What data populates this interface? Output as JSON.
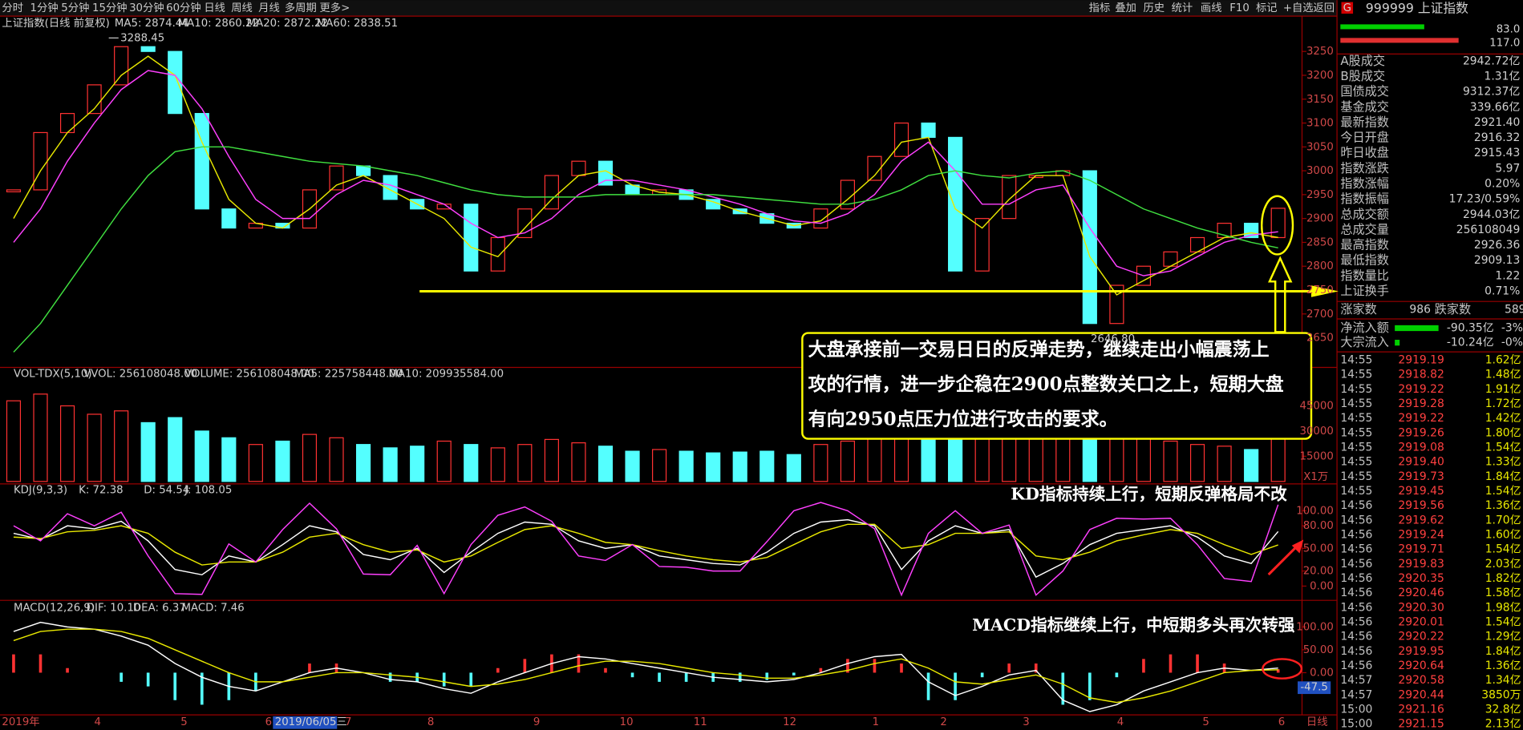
{
  "toolbar": {
    "periods": [
      "分时",
      "1分钟",
      "5分钟",
      "15分钟",
      "30分钟",
      "60分钟",
      "日线",
      "周线",
      "月线",
      "多周期",
      "更多>"
    ],
    "tools": [
      "指标",
      "叠加",
      "历史",
      "统计",
      "画线",
      "F10",
      "标记",
      "+自选",
      "返回"
    ]
  },
  "price": {
    "title": "上证指数(日线 前复权)",
    "ma_labels": [
      {
        "text": "MA5: 2874.44",
        "color": "#ffffff"
      },
      {
        "text": "MA10: 2860.22",
        "color": "#e8e800"
      },
      {
        "text": "MA20: 2872.22",
        "color": "#ff40ff"
      },
      {
        "text": "MA60: 2838.51",
        "color": "#40e040"
      }
    ],
    "high_label": "3288.45",
    "low_label": "2646.80",
    "ylim": [
      2591,
      3323
    ],
    "yticks": [
      2650,
      2700,
      2750,
      2800,
      2850,
      2900,
      2950,
      3000,
      3050,
      3100,
      3150,
      3200,
      3250
    ],
    "close": [
      2960,
      3080,
      3120,
      3180,
      3260,
      3250,
      3120,
      2920,
      2880,
      2890,
      2880,
      2960,
      3010,
      2990,
      2940,
      2920,
      2930,
      2790,
      2860,
      2920,
      2990,
      3020,
      2970,
      2950,
      2960,
      2940,
      2920,
      2910,
      2890,
      2880,
      2920,
      2980,
      3030,
      3100,
      3070,
      2790,
      2900,
      2990,
      2990,
      3000,
      2680,
      2760,
      2800,
      2830,
      2860,
      2890,
      2860,
      2921.4
    ],
    "ma10": [
      2900,
      3000,
      3080,
      3130,
      3200,
      3240,
      3200,
      3060,
      2940,
      2890,
      2880,
      2920,
      2970,
      2990,
      2960,
      2930,
      2900,
      2840,
      2820,
      2880,
      2940,
      2990,
      3000,
      2970,
      2955,
      2950,
      2935,
      2915,
      2900,
      2885,
      2895,
      2940,
      2990,
      3060,
      3070,
      2920,
      2880,
      2940,
      2990,
      2990,
      2820,
      2740,
      2770,
      2800,
      2830,
      2860,
      2870,
      2860.22
    ],
    "ma20": [
      2850,
      2920,
      3020,
      3100,
      3170,
      3210,
      3200,
      3130,
      3030,
      2940,
      2900,
      2900,
      2950,
      2980,
      2970,
      2950,
      2930,
      2890,
      2860,
      2870,
      2900,
      2950,
      2980,
      2980,
      2970,
      2960,
      2945,
      2930,
      2910,
      2895,
      2890,
      2910,
      2950,
      3020,
      3060,
      3000,
      2930,
      2930,
      2960,
      2970,
      2880,
      2800,
      2780,
      2790,
      2820,
      2850,
      2865,
      2872.22
    ],
    "ma60": [
      2620,
      2680,
      2760,
      2840,
      2920,
      2990,
      3040,
      3050,
      3050,
      3040,
      3030,
      3020,
      3015,
      3010,
      3000,
      2990,
      2975,
      2960,
      2950,
      2945,
      2945,
      2945,
      2950,
      2950,
      2950,
      2950,
      2950,
      2945,
      2940,
      2935,
      2930,
      2930,
      2940,
      2960,
      2990,
      3000,
      2990,
      2985,
      2995,
      3000,
      2980,
      2950,
      2920,
      2900,
      2880,
      2865,
      2850,
      2838.51
    ]
  },
  "volume": {
    "labels": [
      {
        "text": "VOL-TDX(5,10)",
        "color": "#d0d0d0"
      },
      {
        "text": "VVOL: 256108048.00",
        "color": "#d0d0d0"
      },
      {
        "text": "VOLUME: 256108048.00",
        "color": "#e8e800"
      },
      {
        "text": "MA5: 225758448.00",
        "color": "#e8e800"
      },
      {
        "text": "MA10: 209935584.00",
        "color": "#ff40ff"
      }
    ],
    "unit": "X1万",
    "ylim": [
      0,
      67000
    ],
    "yticks": [
      15000,
      30000,
      45000
    ],
    "values": [
      48000,
      52000,
      45000,
      40000,
      42000,
      35000,
      38000,
      30000,
      26000,
      22000,
      24000,
      28000,
      26000,
      22000,
      20000,
      21000,
      24000,
      22000,
      20000,
      22000,
      25000,
      23000,
      21000,
      18000,
      19000,
      18000,
      17000,
      17500,
      18000,
      16000,
      22000,
      24000,
      28000,
      34000,
      30000,
      45000,
      38000,
      40000,
      42000,
      36000,
      38000,
      30000,
      26000,
      24000,
      22000,
      21000,
      19000,
      25611
    ]
  },
  "kdj": {
    "labels": [
      {
        "text": "KDJ(9,3,3)",
        "color": "#d0d0d0"
      },
      {
        "text": "K: 72.38",
        "color": "#ffffff"
      },
      {
        "text": "D: 54.54",
        "color": "#e8e800"
      },
      {
        "text": "J: 108.05",
        "color": "#ff40ff"
      }
    ],
    "ylim": [
      -17,
      135
    ],
    "yticks": [
      {
        "value": 0,
        "label": "0.00"
      },
      {
        "value": 20,
        "label": "20.00"
      },
      {
        "value": 50,
        "label": "50.00"
      },
      {
        "value": 80,
        "label": "80.00"
      },
      {
        "value": 100,
        "label": "100.00"
      }
    ],
    "k": [
      70,
      62,
      80,
      76,
      86,
      60,
      22,
      15,
      40,
      32,
      55,
      80,
      72,
      42,
      35,
      50,
      18,
      45,
      70,
      85,
      82,
      60,
      50,
      55,
      40,
      35,
      30,
      28,
      45,
      70,
      85,
      88,
      80,
      22,
      60,
      80,
      70,
      75,
      12,
      30,
      55,
      70,
      75,
      80,
      65,
      40,
      30,
      72.38
    ],
    "d": [
      65,
      63,
      72,
      74,
      80,
      70,
      45,
      28,
      32,
      32,
      45,
      65,
      70,
      55,
      45,
      48,
      32,
      40,
      58,
      75,
      80,
      70,
      58,
      55,
      47,
      40,
      35,
      32,
      38,
      55,
      72,
      82,
      82,
      50,
      55,
      70,
      70,
      72,
      40,
      35,
      45,
      60,
      68,
      75,
      70,
      55,
      42,
      54.54
    ],
    "j": [
      80,
      60,
      96,
      80,
      98,
      40,
      -10,
      -11,
      56,
      32,
      75,
      110,
      76,
      16,
      15,
      54,
      -10,
      55,
      94,
      105,
      86,
      40,
      34,
      55,
      26,
      25,
      20,
      20,
      59,
      100,
      111,
      100,
      76,
      -12,
      70,
      100,
      70,
      81,
      -12,
      20,
      75,
      90,
      89,
      90,
      55,
      10,
      6,
      108.05
    ],
    "annotation": "KD指标持续上行，短期反弹格局不改"
  },
  "macd": {
    "labels": [
      {
        "text": "MACD(12,26,9)",
        "color": "#d0d0d0"
      },
      {
        "text": "DIF: 10.10",
        "color": "#ffffff"
      },
      {
        "text": "DEA: 6.37",
        "color": "#e8e800"
      },
      {
        "text": "MACD: 7.46",
        "color": "#ff40ff"
      }
    ],
    "ylim": [
      -89,
      157
    ],
    "yticks": [
      {
        "value": 0,
        "label": "0.00"
      },
      {
        "value": 50,
        "label": "50.00"
      },
      {
        "value": 100,
        "label": "100.00"
      }
    ],
    "dif": [
      90,
      110,
      100,
      95,
      80,
      60,
      20,
      -10,
      -30,
      -40,
      -20,
      0,
      10,
      0,
      -15,
      -20,
      -35,
      -45,
      -20,
      0,
      20,
      35,
      30,
      20,
      10,
      0,
      -10,
      -15,
      -20,
      -15,
      0,
      20,
      35,
      40,
      -20,
      -50,
      -30,
      -5,
      5,
      -60,
      -85,
      -70,
      -40,
      -20,
      0,
      10,
      5,
      10.1
    ],
    "dea": [
      70,
      90,
      95,
      95,
      90,
      75,
      50,
      25,
      0,
      -20,
      -20,
      -10,
      0,
      0,
      -5,
      -10,
      -20,
      -30,
      -25,
      -15,
      0,
      15,
      25,
      25,
      20,
      10,
      0,
      -5,
      -12,
      -12,
      -5,
      5,
      20,
      30,
      10,
      -20,
      -25,
      -15,
      -5,
      -25,
      -55,
      -65,
      -55,
      -40,
      -20,
      0,
      5,
      6.37
    ],
    "macd": [
      40,
      40,
      10,
      0,
      -20,
      -30,
      -60,
      -70,
      -60,
      -40,
      0,
      20,
      20,
      0,
      -20,
      -20,
      -30,
      -30,
      10,
      30,
      40,
      40,
      10,
      -10,
      -20,
      -20,
      -20,
      -20,
      -16,
      -6,
      10,
      30,
      30,
      20,
      -60,
      -60,
      -10,
      20,
      20,
      -70,
      -60,
      -10,
      30,
      40,
      40,
      20,
      0,
      7.46
    ],
    "cursor_label": "-47.5",
    "annotation": "MACD指标继续上行，中短期多头再次转强"
  },
  "annotation": [
    "大盘承接前一交易日日的反弹走势，继续走出小幅震荡上",
    "攻的行情，进一步企稳在2900点整数关口之上，短期大盘",
    "有向2950点压力位进行攻击的要求。"
  ],
  "xaxis": [
    "2019年",
    "4",
    "5",
    "6",
    "2019/06/05三",
    "7",
    "8",
    "9",
    "10",
    "11",
    "12",
    "1",
    "2",
    "3",
    "4",
    "5",
    "6",
    "日线"
  ],
  "quote": {
    "code": "999999 上证指数",
    "badge": "G",
    "bars": [
      {
        "value": 83,
        "label": "83.0",
        "color": "#00d000"
      },
      {
        "value": 117,
        "label": "117.0",
        "color": "#e03030"
      }
    ],
    "rows": [
      {
        "label": "A股成交",
        "value": "2942.72亿",
        "color": "#e8e800"
      },
      {
        "label": "B股成交",
        "value": "1.31亿",
        "color": "#e8e800"
      },
      {
        "label": "国债成交",
        "value": "9312.37亿",
        "color": "#e8e800"
      },
      {
        "label": "基金成交",
        "value": "339.66亿",
        "color": "#e8e800"
      },
      {
        "label": "最新指数",
        "value": "2921.40",
        "color": "#ff4040"
      },
      {
        "label": "今日开盘",
        "value": "2916.32",
        "color": "#ff4040"
      },
      {
        "label": "昨日收盘",
        "value": "2915.43",
        "color": "#e0e0e0"
      },
      {
        "label": "指数涨跌",
        "value": "5.97",
        "color": "#ff4040"
      },
      {
        "label": "指数涨幅",
        "value": "0.20%",
        "color": "#ff4040"
      },
      {
        "label": "指数振幅",
        "value": "17.23/0.59%",
        "color": "#e0e0e0"
      },
      {
        "label": "总成交额",
        "value": "2944.03亿",
        "color": "#e8e800"
      },
      {
        "label": "总成交量",
        "value": "256108049",
        "color": "#e8e800"
      },
      {
        "label": "最高指数",
        "value": "2926.36",
        "color": "#ff4040"
      },
      {
        "label": "最低指数",
        "value": "2909.13",
        "color": "#ff4040"
      },
      {
        "label": "指数量比",
        "value": "1.22",
        "color": "#e8e800"
      },
      {
        "label": "上证换手",
        "value": "0.71%",
        "color": "#e0e0e0"
      }
    ],
    "breadth": {
      "up_label": "涨家数",
      "up": 986,
      "down_label": "跌家数",
      "down": 589
    },
    "flows": [
      {
        "label": "净流入额",
        "value": "-90.35亿",
        "pct": "-3%"
      },
      {
        "label": "大宗流入",
        "value": "-10.24亿",
        "pct": "-0%"
      }
    ],
    "trades": [
      [
        "14:55",
        "2919.19",
        "1.62亿"
      ],
      [
        "14:55",
        "2918.82",
        "1.48亿"
      ],
      [
        "14:55",
        "2919.22",
        "1.91亿"
      ],
      [
        "14:55",
        "2919.28",
        "1.72亿"
      ],
      [
        "14:55",
        "2919.22",
        "1.42亿"
      ],
      [
        "14:55",
        "2919.26",
        "1.80亿"
      ],
      [
        "14:55",
        "2919.08",
        "1.54亿"
      ],
      [
        "14:55",
        "2919.40",
        "1.33亿"
      ],
      [
        "14:55",
        "2919.73",
        "1.84亿"
      ],
      [
        "14:55",
        "2919.45",
        "1.54亿"
      ],
      [
        "14:56",
        "2919.56",
        "1.36亿"
      ],
      [
        "14:56",
        "2919.62",
        "1.70亿"
      ],
      [
        "14:56",
        "2919.24",
        "1.60亿"
      ],
      [
        "14:56",
        "2919.71",
        "1.54亿"
      ],
      [
        "14:56",
        "2919.83",
        "2.03亿"
      ],
      [
        "14:56",
        "2920.35",
        "1.82亿"
      ],
      [
        "14:56",
        "2920.46",
        "1.58亿"
      ],
      [
        "14:56",
        "2920.30",
        "1.98亿"
      ],
      [
        "14:56",
        "2920.01",
        "1.54亿"
      ],
      [
        "14:56",
        "2920.22",
        "1.29亿"
      ],
      [
        "14:56",
        "2919.95",
        "1.84亿"
      ],
      [
        "14:56",
        "2920.64",
        "1.36亿"
      ],
      [
        "14:57",
        "2920.58",
        "1.34亿"
      ],
      [
        "14:57",
        "2920.44",
        "3850万"
      ],
      [
        "15:00",
        "2921.16",
        "32.8亿"
      ],
      [
        "15:00",
        "2921.15",
        "2.13亿"
      ]
    ]
  }
}
